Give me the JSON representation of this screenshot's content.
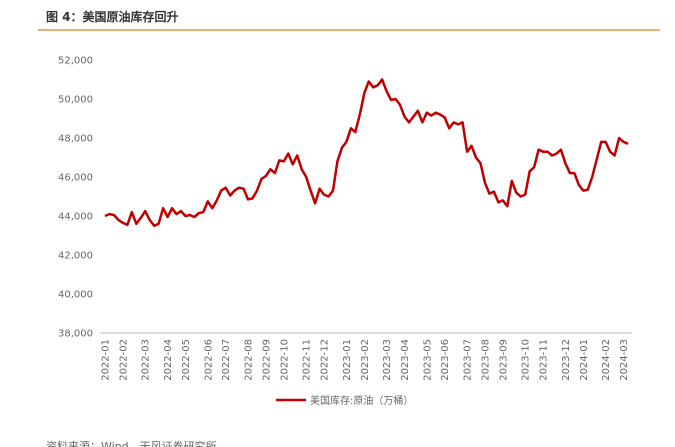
{
  "chart_data": {
    "type": "line",
    "title": "图 4：美国原油库存回升",
    "source": "资料来源：Wind，天风证券研究所",
    "categories": [
      "2022-01",
      null,
      null,
      null,
      "2022-02",
      null,
      null,
      null,
      null,
      "2022-03",
      null,
      null,
      null,
      null,
      "2022-04",
      null,
      null,
      null,
      "2022-05",
      null,
      null,
      null,
      null,
      "2022-06",
      null,
      null,
      null,
      "2022-07",
      null,
      null,
      null,
      null,
      "2022-08",
      null,
      null,
      null,
      "2022-09",
      null,
      null,
      null,
      "2022-10",
      null,
      null,
      null,
      null,
      "2022-11",
      null,
      null,
      null,
      "2022-12",
      null,
      null,
      null,
      null,
      "2023-01",
      null,
      null,
      null,
      "2023-02",
      null,
      null,
      null,
      null,
      "2023-03",
      null,
      null,
      null,
      "2023-04",
      null,
      null,
      null,
      null,
      "2023-05",
      null,
      null,
      null,
      "2023-06",
      null,
      null,
      null,
      null,
      "2023-07",
      null,
      null,
      null,
      "2023-08",
      null,
      null,
      null,
      "2023-09",
      null,
      null,
      null,
      null,
      "2023-10",
      null,
      null,
      null,
      "2023-11",
      null,
      null,
      null,
      null,
      "2023-12",
      null,
      null,
      null,
      "2024-01",
      null,
      null,
      null,
      null,
      "2024-02",
      null,
      null,
      null,
      "2024-03",
      null
    ],
    "series": [
      {
        "name": "美国库存:原油（万桶）",
        "color": "#c00000",
        "values": [
          44000,
          44100,
          44050,
          43800,
          43650,
          43550,
          44200,
          43600,
          43900,
          44250,
          43800,
          43500,
          43600,
          44400,
          43950,
          44400,
          44100,
          44250,
          44000,
          44050,
          43950,
          44150,
          44200,
          44750,
          44400,
          44800,
          45300,
          45450,
          45050,
          45300,
          45450,
          45400,
          44850,
          44900,
          45300,
          45900,
          46050,
          46400,
          46200,
          46850,
          46800,
          47200,
          46650,
          47100,
          46400,
          46000,
          45300,
          44650,
          45400,
          45100,
          45000,
          45300,
          46800,
          47500,
          47800,
          48500,
          48300,
          49200,
          50300,
          50900,
          50600,
          50700,
          51000,
          50400,
          49950,
          50000,
          49700,
          49100,
          48800,
          49100,
          49400,
          48800,
          49300,
          49150,
          49300,
          49200,
          49050,
          48500,
          48800,
          48700,
          48800,
          47300,
          47600,
          47000,
          46700,
          45700,
          45150,
          45250,
          44700,
          44800,
          44500,
          45800,
          45200,
          45000,
          45100,
          46300,
          46500,
          47400,
          47300,
          47300,
          47100,
          47200,
          47400,
          46700,
          46200,
          46200,
          45600,
          45300,
          45350,
          46000,
          46900,
          47800,
          47800,
          47300,
          47100,
          48000,
          47800,
          47700
        ]
      }
    ],
    "ylim": [
      38000,
      52000
    ],
    "yticks": [
      {
        "value": 38000,
        "label": "38,000"
      },
      {
        "value": 40000,
        "label": "40,000"
      },
      {
        "value": 42000,
        "label": "42,000"
      },
      {
        "value": 44000,
        "label": "44,000"
      },
      {
        "value": 46000,
        "label": "46,000"
      },
      {
        "value": 48000,
        "label": "48,000"
      },
      {
        "value": 50000,
        "label": "50,000"
      },
      {
        "value": 52000,
        "label": "52,000"
      }
    ],
    "grid": false
  }
}
